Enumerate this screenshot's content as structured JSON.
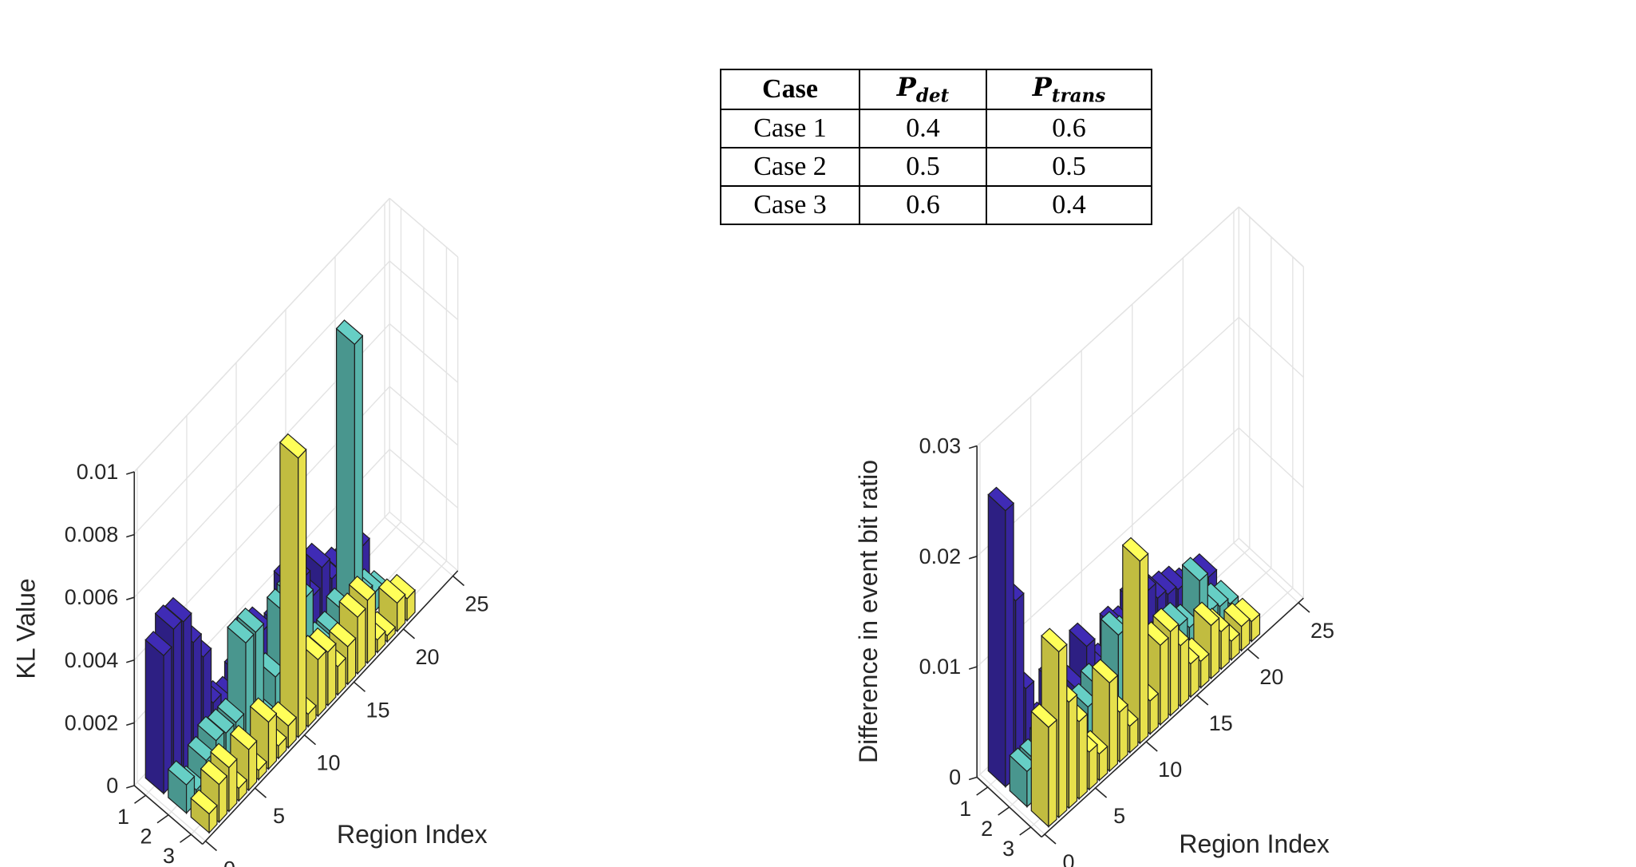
{
  "colors": {
    "case1": "#3a28a8",
    "case2": "#5ec0b6",
    "case3": "#f8f152",
    "edge": "#1f1f1f"
  },
  "table": {
    "headers": {
      "case": "Case",
      "pdet_main": "P",
      "pdet_sub": "det",
      "ptrans_main": "P",
      "ptrans_sub": "trans"
    },
    "rows": [
      {
        "case": "Case 1",
        "pdet": "0.4",
        "ptrans": "0.6"
      },
      {
        "case": "Case 2",
        "pdet": "0.5",
        "ptrans": "0.5"
      },
      {
        "case": "Case 3",
        "pdet": "0.6",
        "ptrans": "0.4"
      }
    ]
  },
  "chart_data": [
    {
      "type": "bar3",
      "title": "",
      "zlabel": "KL Value",
      "xlabel": "Region Index",
      "ylabel": "",
      "zlim": [
        0,
        0.01
      ],
      "zticks": [
        "0",
        "0.002",
        "0.004",
        "0.006",
        "0.008",
        "0.01"
      ],
      "region_ticks": [
        "0",
        "5",
        "10",
        "15",
        "20",
        "25"
      ],
      "case_ticks": [
        "1",
        "2",
        "3"
      ],
      "regions": [
        1,
        2,
        3,
        4,
        5,
        6,
        7,
        8,
        9,
        10,
        11,
        12,
        13,
        14,
        15,
        16,
        17,
        18,
        19,
        20,
        21
      ],
      "series": [
        {
          "name": "Case 1",
          "values": [
            0.0044,
            0.0049,
            0.0048,
            0.0038,
            0.003,
            0.0012,
            0.0008,
            0.0006,
            0.001,
            0.002,
            0.0018,
            0.0011,
            0.0012,
            0.0022,
            0.0021,
            0.0012,
            0.0018,
            0.0011,
            0.001,
            0.0008,
            0.0011
          ]
        },
        {
          "name": "Case 2",
          "values": [
            0.0009,
            0.0004,
            0.001,
            0.0013,
            0.0012,
            0.0012,
            0.0034,
            0.0034,
            0.0004,
            0.0013,
            0.003,
            0.0031,
            0.0028,
            0.0008,
            0.0006,
            0.0006,
            0.001,
            0.0092,
            0.0009,
            0.0006,
            0.0002
          ]
        },
        {
          "name": "Case 3",
          "values": [
            0.0006,
            0.0012,
            0.0014,
            0.0004,
            0.0013,
            0.0003,
            0.0015,
            0.0004,
            0.0007,
            0.0089,
            0.0004,
            0.0018,
            0.0017,
            0.0009,
            0.0012,
            0.0018,
            0.002,
            0.0004,
            0.0002,
            0.0009,
            0.0007
          ]
        }
      ]
    },
    {
      "type": "bar3",
      "title": "",
      "zlabel": "Difference in event bit ratio",
      "xlabel": "Region Index",
      "ylabel": "",
      "zlim": [
        0,
        0.03
      ],
      "zticks": [
        "0",
        "0.01",
        "0.02",
        "0.03"
      ],
      "region_ticks": [
        "0",
        "5",
        "10",
        "15",
        "20",
        "25"
      ],
      "case_ticks": [
        "1",
        "2",
        "3"
      ],
      "regions": [
        1,
        2,
        3,
        4,
        5,
        6,
        7,
        8,
        9,
        10,
        11,
        12,
        13,
        14,
        15,
        16,
        17,
        18,
        19,
        20,
        21
      ],
      "series": [
        {
          "name": "Case 1",
          "values": [
            0.025,
            0.016,
            0.0072,
            0.003,
            0.0022,
            0.005,
            0.0028,
            0.003,
            0.006,
            0.0032,
            0.0025,
            0.005,
            0.0042,
            0.0055,
            0.006,
            0.0045,
            0.004,
            0.0036,
            0.0026,
            0.0022,
            0.0022
          ]
        },
        {
          "name": "Case 2",
          "values": [
            0.0032,
            0.0032,
            0.004,
            0.0052,
            0.0052,
            0.0032,
            0.004,
            0.005,
            0.003,
            0.008,
            0.0068,
            0.0052,
            0.0048,
            0.0036,
            0.0035,
            0.0038,
            0.0028,
            0.0062,
            0.0026,
            0.0022,
            0.0016
          ]
        },
        {
          "name": "Case 3",
          "values": [
            0.009,
            0.015,
            0.0096,
            0.007,
            0.0034,
            0.0024,
            0.008,
            0.0045,
            0.0024,
            0.0165,
            0.003,
            0.0072,
            0.0076,
            0.0055,
            0.003,
            0.0024,
            0.0048,
            0.0034,
            0.0017,
            0.0022,
            0.0018
          ]
        }
      ]
    }
  ]
}
